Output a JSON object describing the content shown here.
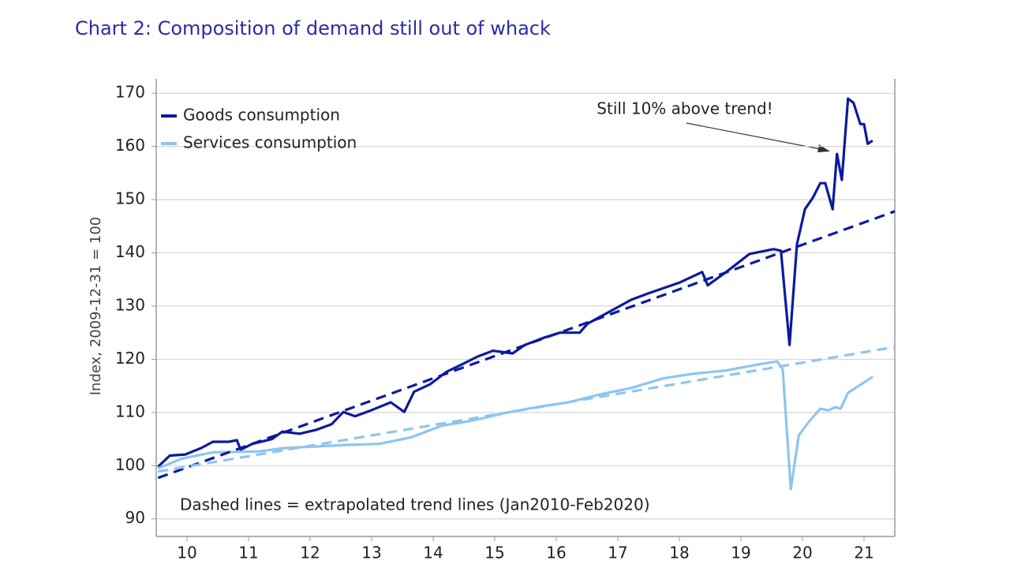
{
  "chart_data": {
    "type": "line",
    "title": "Chart 2: Composition of demand still out of whack",
    "y_label": "Index, 2009-12-31 = 100",
    "note": "Dashed lines = extrapolated trend lines (Jan2010-Feb2020)",
    "annotation": "Still 10% above trend!",
    "xlim": [
      2010,
      2022
    ],
    "xticks": [
      {
        "value": 2010.5,
        "label": "10"
      },
      {
        "value": 2011.5,
        "label": "11"
      },
      {
        "value": 2012.5,
        "label": "12"
      },
      {
        "value": 2013.5,
        "label": "13"
      },
      {
        "value": 2014.5,
        "label": "14"
      },
      {
        "value": 2015.5,
        "label": "15"
      },
      {
        "value": 2016.5,
        "label": "16"
      },
      {
        "value": 2017.5,
        "label": "17"
      },
      {
        "value": 2018.5,
        "label": "18"
      },
      {
        "value": 2019.5,
        "label": "19"
      },
      {
        "value": 2020.5,
        "label": "20"
      },
      {
        "value": 2021.5,
        "label": "21"
      }
    ],
    "ylim": [
      86.7,
      172.7
    ],
    "yticks": [
      90,
      100,
      110,
      120,
      130,
      140,
      150,
      160,
      170
    ],
    "grid": true,
    "legend": "upper left",
    "series": [
      {
        "name": "Goods consumption",
        "color": "#0d1a9c",
        "dash": false,
        "x": [
          2010.03,
          2010.22,
          2010.47,
          2010.73,
          2010.92,
          2011.18,
          2011.31,
          2011.37,
          2011.56,
          2011.88,
          2012.05,
          2012.33,
          2012.59,
          2012.85,
          2013.04,
          2013.23,
          2013.49,
          2013.81,
          2014.03,
          2014.19,
          2014.45,
          2014.71,
          2014.96,
          2015.22,
          2015.47,
          2015.79,
          2015.99,
          2016.31,
          2016.56,
          2016.88,
          2017.01,
          2017.72,
          2018.0,
          2018.5,
          2018.87,
          2018.96,
          2019.26,
          2019.64,
          2020.03,
          2020.15,
          2020.29,
          2020.41,
          2020.54,
          2020.67,
          2020.79,
          2020.87,
          2020.99,
          2021.06,
          2021.14,
          2021.24,
          2021.33,
          2021.44,
          2021.5,
          2021.56,
          2021.64
        ],
        "values": [
          99.8,
          101.9,
          102.1,
          103.3,
          104.5,
          104.5,
          104.8,
          103.0,
          104.1,
          105.0,
          106.4,
          106.0,
          106.7,
          107.8,
          110.1,
          109.3,
          110.4,
          111.9,
          110.1,
          113.9,
          115.3,
          117.6,
          119.0,
          120.5,
          121.6,
          121.1,
          122.7,
          124.1,
          125.0,
          125.0,
          126.7,
          131.2,
          132.4,
          134.4,
          136.4,
          133.9,
          136.4,
          139.8,
          140.7,
          140.4,
          122.7,
          141.6,
          148.2,
          150.4,
          153.1,
          153.1,
          148.2,
          158.6,
          153.7,
          169.0,
          168.2,
          164.2,
          164.2,
          160.5,
          161.1
        ]
      },
      {
        "name": "Services consumption",
        "color": "#8ec5f0",
        "dash": false,
        "x": [
          2010.03,
          2010.41,
          2010.92,
          2011.31,
          2011.69,
          2012.08,
          2012.59,
          2013.1,
          2013.62,
          2014.13,
          2014.64,
          2015.15,
          2015.67,
          2016.18,
          2016.69,
          2017.21,
          2017.72,
          2018.23,
          2018.74,
          2019.26,
          2019.77,
          2020.09,
          2020.18,
          2020.31,
          2020.44,
          2020.6,
          2020.79,
          2020.92,
          2021.03,
          2021.12,
          2021.24,
          2021.44,
          2021.64
        ],
        "values": [
          99.5,
          101.3,
          102.5,
          102.6,
          102.7,
          103.3,
          103.6,
          103.9,
          104.1,
          105.3,
          107.5,
          108.5,
          109.9,
          111.0,
          111.9,
          113.4,
          114.6,
          116.4,
          117.3,
          117.9,
          119.0,
          119.6,
          118.1,
          95.6,
          105.7,
          108.2,
          110.7,
          110.4,
          111.0,
          110.7,
          113.7,
          115.2,
          116.7
        ]
      },
      {
        "color": "#0d1a9c",
        "dash": true,
        "x": [
          2010.03,
          2022
        ],
        "values": [
          97.7,
          147.8
        ]
      },
      {
        "color": "#8ec5f0",
        "dash": true,
        "x": [
          2010.03,
          2022
        ],
        "values": [
          98.9,
          122.3
        ]
      }
    ]
  }
}
